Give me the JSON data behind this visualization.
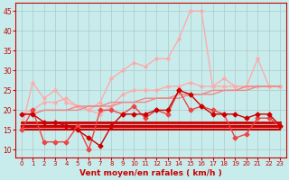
{
  "x": [
    0,
    1,
    2,
    3,
    4,
    5,
    6,
    7,
    8,
    9,
    10,
    11,
    12,
    13,
    14,
    15,
    16,
    17,
    18,
    19,
    20,
    21,
    22,
    23
  ],
  "line_rafales_light": [
    15,
    27,
    23,
    25,
    22,
    21,
    20,
    22,
    28,
    30,
    32,
    31,
    33,
    33,
    38,
    45,
    45,
    26,
    28,
    26,
    26,
    33,
    26,
    26
  ],
  "line_moyen_light": [
    19,
    20,
    22,
    22,
    23,
    21,
    20,
    19,
    21,
    24,
    25,
    25,
    25,
    26,
    26,
    27,
    26,
    26,
    26,
    26,
    26,
    26,
    26,
    26
  ],
  "line_trend_up1": [
    19,
    19,
    20,
    20,
    20,
    20,
    21,
    21,
    21,
    22,
    22,
    22,
    23,
    23,
    23,
    24,
    24,
    24,
    25,
    25,
    25,
    26,
    26,
    26
  ],
  "line_trend_up2": [
    19,
    19,
    20,
    20,
    20,
    21,
    21,
    21,
    22,
    22,
    22,
    23,
    23,
    23,
    24,
    24,
    24,
    25,
    25,
    25,
    26,
    26,
    26,
    26
  ],
  "line_horiz1": [
    17,
    17,
    17,
    17,
    17,
    17,
    17,
    17,
    17,
    17,
    17,
    17,
    17,
    17,
    17,
    17,
    17,
    17,
    17,
    17,
    17,
    17,
    17,
    17
  ],
  "line_horiz2": [
    16,
    16,
    16,
    16,
    16,
    16,
    16,
    16,
    16,
    16,
    16,
    16,
    16,
    16,
    16,
    16,
    16,
    16,
    16,
    16,
    16,
    16,
    16,
    16
  ],
  "line_horiz3": [
    15,
    15,
    15,
    15,
    15,
    15,
    15,
    15,
    15,
    15,
    15,
    15,
    15,
    15,
    15,
    15,
    15,
    15,
    15,
    15,
    15,
    15,
    15,
    15
  ],
  "line_moyen_dark": [
    19,
    19,
    17,
    17,
    16,
    15,
    13,
    11,
    16,
    19,
    19,
    19,
    20,
    20,
    25,
    24,
    21,
    19,
    19,
    19,
    18,
    19,
    19,
    16
  ],
  "line_rafales_dark": [
    15,
    20,
    12,
    12,
    12,
    16,
    10,
    20,
    20,
    19,
    21,
    18,
    20,
    19,
    25,
    20,
    21,
    20,
    19,
    13,
    14,
    18,
    18,
    16
  ],
  "dashes_y": [
    8,
    8,
    8,
    8,
    8,
    8,
    8,
    8,
    8,
    8,
    8,
    8,
    8,
    8,
    8,
    8,
    8,
    8,
    8,
    8,
    8,
    8,
    8,
    8
  ],
  "bg_color": "#c8ecec",
  "grid_color": "#b0c8c8",
  "line_color_dark": "#cc0000",
  "line_color_mid": "#ee4444",
  "line_color_light": "#ffaaaa",
  "xlabel": "Vent moyen/en rafales ( km/h )",
  "ylim": [
    8,
    47
  ],
  "xlim": [
    -0.5,
    23.5
  ],
  "yticks": [
    10,
    15,
    20,
    25,
    30,
    35,
    40,
    45
  ],
  "xticks": [
    0,
    1,
    2,
    3,
    4,
    5,
    6,
    7,
    8,
    9,
    10,
    11,
    12,
    13,
    14,
    15,
    16,
    17,
    18,
    19,
    20,
    21,
    22,
    23
  ]
}
